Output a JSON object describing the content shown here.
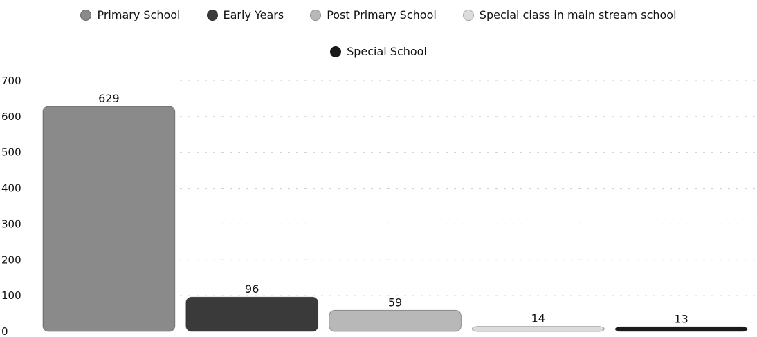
{
  "chart_data": {
    "type": "bar",
    "categories": [
      "Primary School",
      "Early Years",
      "Post Primary School",
      "Special class in main stream school",
      "Special School"
    ],
    "values": [
      629,
      96,
      59,
      14,
      13
    ],
    "data_labels": [
      "629",
      "96",
      "59",
      "14",
      "13"
    ],
    "colors": [
      "#8a8a8a",
      "#3a3a3a",
      "#b8b8b8",
      "#dcdcdc",
      "#1a1a1a"
    ],
    "legend": [
      "Primary School",
      "Early Years",
      "Post Primary School",
      "Special class in main stream school",
      "Special School"
    ],
    "legend_position": "top-center",
    "y_ticks": [
      "0",
      "100",
      "200",
      "300",
      "400",
      "500",
      "600",
      "700"
    ],
    "ylim": [
      0,
      700
    ],
    "title": "",
    "xlabel": "",
    "ylabel": "",
    "grid": true
  }
}
